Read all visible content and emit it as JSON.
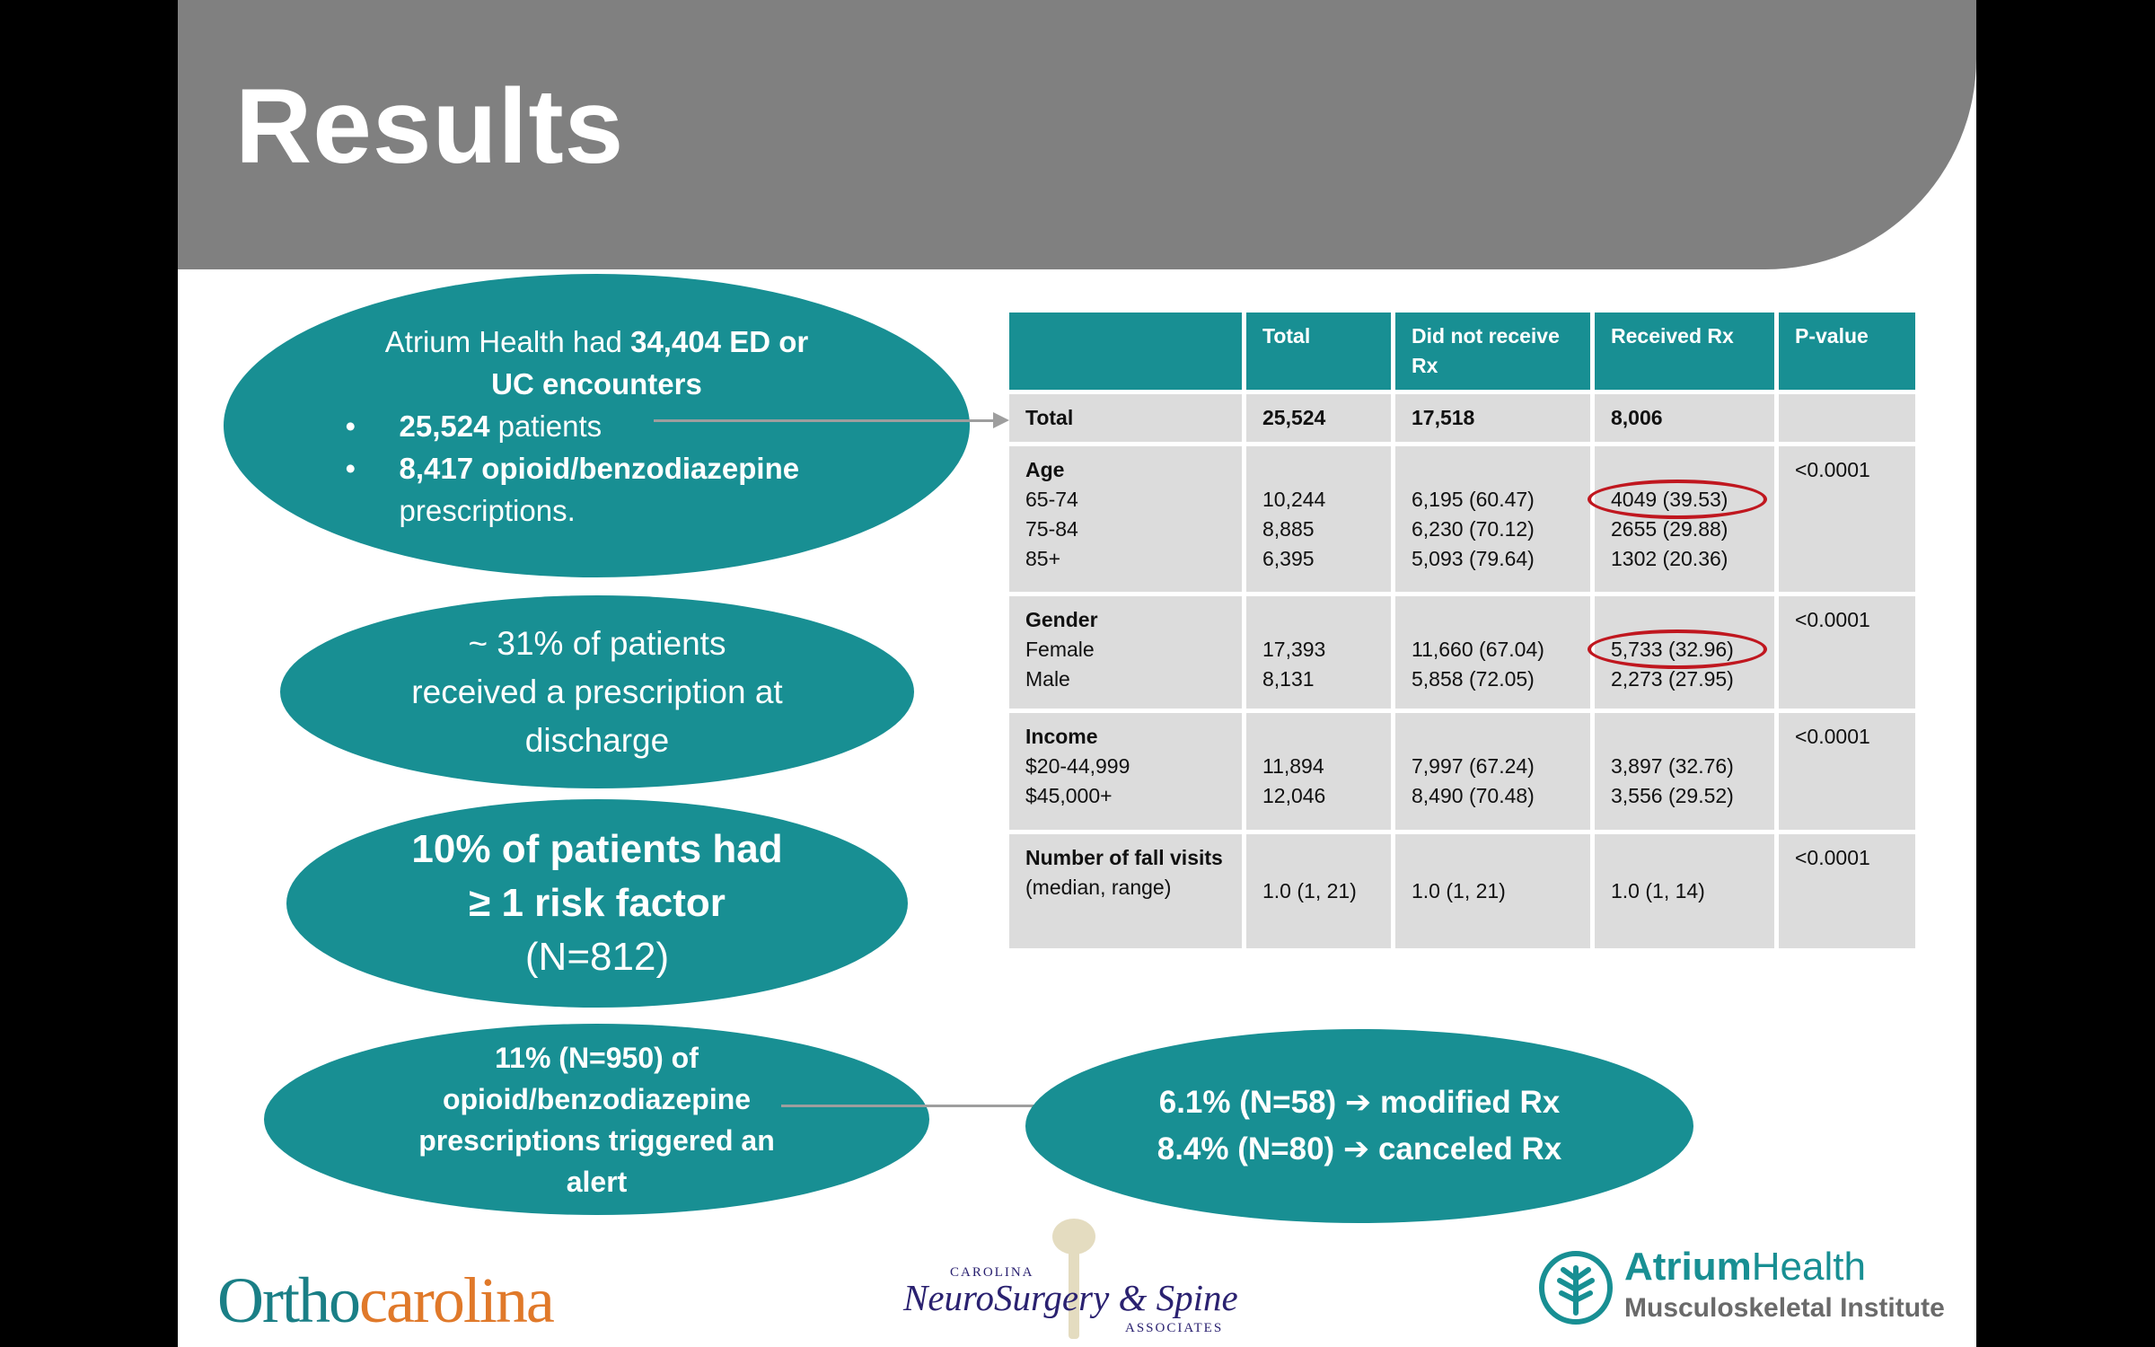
{
  "slide": {
    "title": "Results",
    "ellipse1": {
      "line1_text": "Atrium Health had ",
      "line1_bold": "34,404 ED or",
      "line2_bold": "UC encounters",
      "bullet1_bold": "25,524",
      "bullet1_text": " patients",
      "bullet2_bold": "8,417 opioid/benzodiazepine",
      "bullet2_text": "prescriptions."
    },
    "ellipse2": {
      "line1": "~ 31% of patients",
      "line2": "received a prescription at",
      "line3": "discharge"
    },
    "ellipse3": {
      "line1": "10% of patients had",
      "line2": "≥ 1 risk factor",
      "line3": "(N=812)"
    },
    "ellipse4": {
      "line1": "11% (N=950) of",
      "line2": "opioid/benzodiazepine",
      "line3": "prescriptions triggered an",
      "line4": "alert"
    },
    "ellipse5": {
      "line1": "6.1% (N=58) ➔ modified Rx",
      "line2": "8.4% (N=80) ➔ canceled Rx"
    }
  },
  "table": {
    "headers": [
      "",
      "Total",
      "Did not receive Rx",
      "Received Rx",
      "P-value"
    ],
    "total_row": {
      "label": "Total",
      "total": "25,524",
      "no_rx": "17,518",
      "rx": "8,006",
      "p": ""
    },
    "age": {
      "label": "Age",
      "rows": [
        "65-74",
        "75-84",
        "85+"
      ],
      "total": [
        "10,244",
        "8,885",
        "6,395"
      ],
      "no_rx": [
        "6,195 (60.47)",
        "6,230 (70.12)",
        "5,093 (79.64)"
      ],
      "rx": [
        "4049 (39.53)",
        "2655 (29.88)",
        "1302 (20.36)"
      ],
      "p": "<0.0001"
    },
    "gender": {
      "label": "Gender",
      "rows": [
        "Female",
        "Male"
      ],
      "total": [
        "17,393",
        "8,131"
      ],
      "no_rx": [
        "11,660 (67.04)",
        "5,858 (72.05)"
      ],
      "rx": [
        "5,733 (32.96)",
        "2,273 (27.95)"
      ],
      "p": "<0.0001"
    },
    "income": {
      "label": "Income",
      "rows": [
        "$20-44,999",
        "$45,000+"
      ],
      "total": [
        "11,894",
        "12,046"
      ],
      "no_rx": [
        "7,997 (67.24)",
        "8,490 (70.48)"
      ],
      "rx": [
        "3,897 (32.76)",
        "3,556 (29.52)"
      ],
      "p": "<0.0001"
    },
    "fall_visits": {
      "label_bold": "Number of fall visits",
      "label_rest": " (median, range)",
      "total": "1.0 (1, 21)",
      "no_rx": "1.0 (1, 21)",
      "rx": "1.0 (1, 14)",
      "p": "<0.0001"
    }
  },
  "logos": {
    "ortho_part1": "Ortho",
    "ortho_part2": "carolina",
    "neuro_top": "CAROLINA",
    "neuro_main": "NeuroSurgery & Spine",
    "neuro_bottom": "ASSOCIATES",
    "atrium_name_bold": "Atrium",
    "atrium_name_rest": "Health",
    "atrium_sub": "Musculoskeletal Institute"
  },
  "colors": {
    "teal": "#188f93",
    "header_gray": "#808080",
    "table_cell": "#dcdcdc",
    "circle_red": "#c0171f",
    "ortho_orange": "#e0792a"
  }
}
